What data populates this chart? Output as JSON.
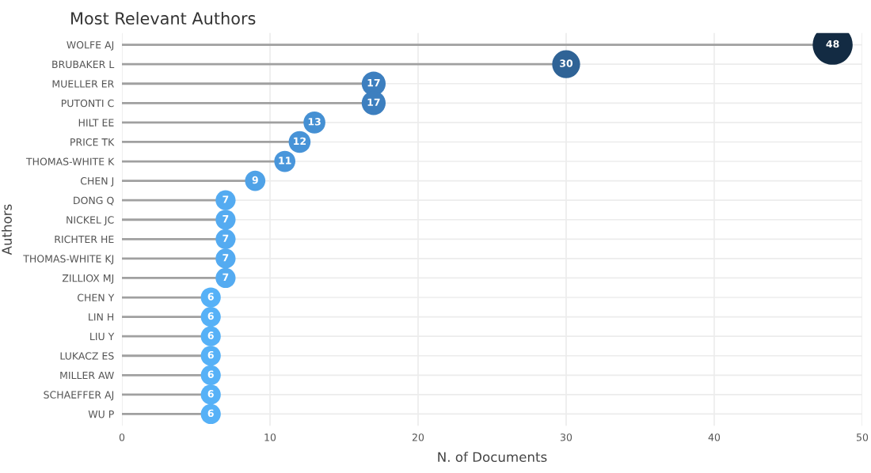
{
  "chart_data": {
    "type": "lollipop",
    "orientation": "horizontal",
    "title": "Most Relevant Authors",
    "xlabel": "N. of Documents",
    "ylabel": "Authors",
    "categories": [
      "WOLFE AJ",
      "BRUBAKER L",
      "MUELLER ER",
      "PUTONTI C",
      "HILT EE",
      "PRICE TK",
      "THOMAS-WHITE K",
      "CHEN J",
      "DONG Q",
      "NICKEL JC",
      "RICHTER HE",
      "THOMAS-WHITE KJ",
      "ZILLIOX MJ",
      "CHEN Y",
      "LIN H",
      "LIU Y",
      "LUKACZ ES",
      "MILLER AW",
      "SCHAEFFER AJ",
      "WU P"
    ],
    "values": [
      48,
      30,
      17,
      17,
      13,
      12,
      11,
      9,
      7,
      7,
      7,
      7,
      7,
      6,
      6,
      6,
      6,
      6,
      6,
      6
    ],
    "colors": [
      "#132b43",
      "#2f6396",
      "#3d7fbf",
      "#3d7fbf",
      "#4590d3",
      "#4793d7",
      "#4996db",
      "#4fa2e7",
      "#54abf1",
      "#54abf1",
      "#54abf1",
      "#54abf1",
      "#54abf1",
      "#56b1f7",
      "#56b1f7",
      "#56b1f7",
      "#56b1f7",
      "#56b1f7",
      "#56b1f7",
      "#56b1f7"
    ],
    "sizes": [
      1,
      0.49,
      0.36,
      0.36,
      0.3,
      0.3,
      0.28,
      0.26,
      0.25,
      0.25,
      0.25,
      0.25,
      0.25,
      0.25,
      0.25,
      0.25,
      0.25,
      0.25,
      0.25,
      0.25
    ],
    "xlim": [
      0,
      50
    ],
    "xticks": [
      0,
      10,
      20,
      30,
      40,
      50
    ],
    "grid": true,
    "data_labels": true,
    "marker": "circle"
  }
}
